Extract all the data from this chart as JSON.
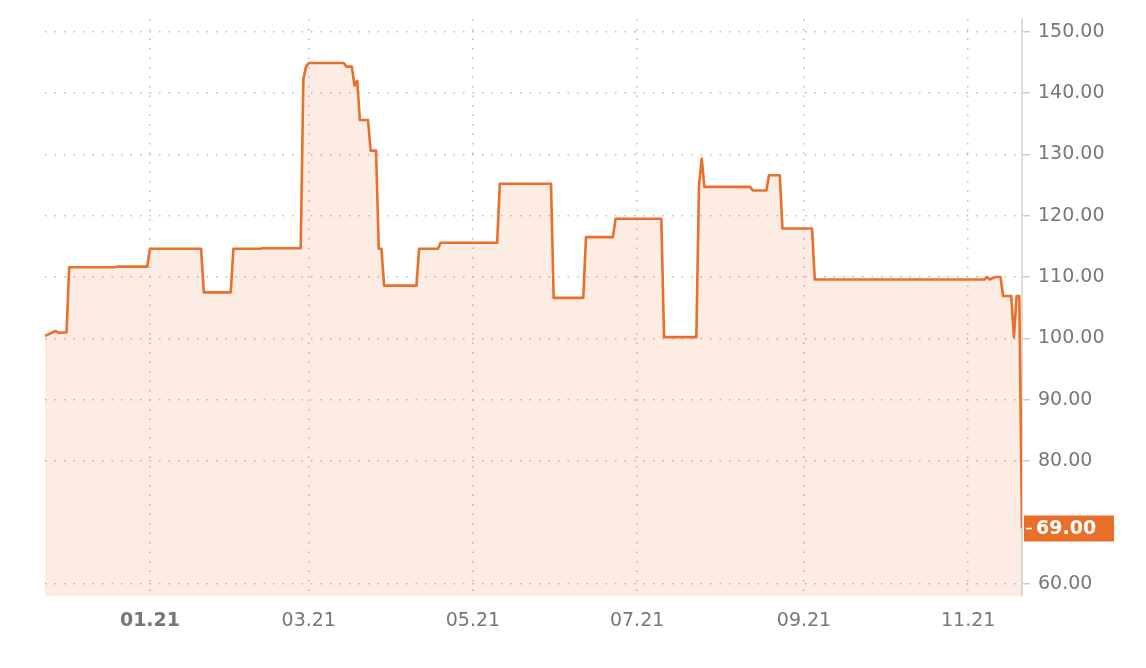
{
  "chart_data": {
    "type": "area",
    "x": [
      "2020-11-23",
      "2020-11-27",
      "2020-11-28",
      "2020-12-01",
      "2020-12-02",
      "2020-12-19",
      "2020-12-20",
      "2020-12-31",
      "2021-01-01",
      "2021-01-20",
      "2021-01-21",
      "2021-01-31",
      "2021-02-01",
      "2021-02-11",
      "2021-02-12",
      "2021-02-26",
      "2021-02-27",
      "2021-02-28",
      "2021-03-01",
      "2021-03-14",
      "2021-03-15",
      "2021-03-17",
      "2021-03-18",
      "2021-03-19",
      "2021-03-20",
      "2021-03-23",
      "2021-03-24",
      "2021-03-26",
      "2021-03-27",
      "2021-03-28",
      "2021-03-29",
      "2021-04-10",
      "2021-04-11",
      "2021-04-18",
      "2021-04-19",
      "2021-05-10",
      "2021-05-11",
      "2021-05-30",
      "2021-05-31",
      "2021-06-11",
      "2021-06-12",
      "2021-06-22",
      "2021-06-23",
      "2021-07-10",
      "2021-07-11",
      "2021-07-23",
      "2021-07-24",
      "2021-07-25",
      "2021-07-26",
      "2021-08-12",
      "2021-08-13",
      "2021-08-18",
      "2021-08-19",
      "2021-08-23",
      "2021-08-24",
      "2021-09-04",
      "2021-09-05",
      "2021-11-07",
      "2021-11-08",
      "2021-11-09",
      "2021-11-11",
      "2021-11-13",
      "2021-11-14",
      "2021-11-17",
      "2021-11-18",
      "2021-11-19",
      "2021-11-20",
      "2021-11-21"
    ],
    "series": [
      {
        "color": "#e8702a",
        "values": [
          100.4,
          101.2,
          100.9,
          101,
          111.6,
          111.6,
          111.7,
          111.7,
          114.6,
          114.6,
          107.5,
          107.5,
          114.6,
          114.6,
          114.7,
          114.7,
          142.3,
          144.3,
          144.9,
          144.9,
          144.3,
          144.3,
          141.2,
          142,
          135.6,
          135.6,
          130.6,
          130.6,
          114.6,
          114.6,
          108.6,
          108.6,
          114.6,
          114.6,
          115.6,
          115.6,
          125.2,
          125.2,
          106.6,
          106.6,
          116.5,
          116.5,
          119.5,
          119.5,
          100.2,
          100.2,
          125,
          129.3,
          124.7,
          124.7,
          124.1,
          124.1,
          126.6,
          126.6,
          117.9,
          117.9,
          109.6,
          109.6,
          110,
          109.6,
          110,
          110,
          106.9,
          106.9,
          100.2,
          106.9,
          106.9,
          69
        ],
        "value_labels": [
          null,
          null,
          null,
          null,
          null,
          null,
          null,
          null,
          null,
          null,
          null,
          null,
          null,
          null,
          null,
          null,
          null,
          null,
          null,
          null,
          null,
          null,
          null,
          null,
          null,
          null,
          null,
          null,
          null,
          null,
          null,
          null,
          null,
          null,
          null,
          null,
          null,
          null,
          null,
          null,
          null,
          null,
          null,
          null,
          null,
          null,
          null,
          null,
          null,
          null,
          null,
          null,
          null,
          null,
          null,
          null,
          null,
          null,
          null,
          null,
          null,
          null,
          null,
          null,
          null,
          null,
          null,
          "69.00"
        ]
      }
    ],
    "xlim": [
      "2020-11-23",
      "2021-11-21"
    ],
    "xticks": [
      {
        "value": "2021-01-01",
        "label": "01.21"
      },
      {
        "value": "2021-03-01",
        "label": "03.21"
      },
      {
        "value": "2021-05-01",
        "label": "05.21"
      },
      {
        "value": "2021-07-01",
        "label": "07.21"
      },
      {
        "value": "2021-09-01",
        "label": "09.21"
      },
      {
        "value": "2021-11-01",
        "label": "11.21"
      }
    ],
    "ylim": [
      58,
      152
    ],
    "yticks": [
      {
        "value": 60,
        "label": "60.00"
      },
      {
        "value": 80,
        "label": "80.00"
      },
      {
        "value": 90,
        "label": "90.00"
      },
      {
        "value": 100,
        "label": "100.00"
      },
      {
        "value": 110,
        "label": "110.00"
      },
      {
        "value": 120,
        "label": "120.00"
      },
      {
        "value": 130,
        "label": "130.00"
      },
      {
        "value": 140,
        "label": "140.00"
      },
      {
        "value": 150,
        "label": "150.00"
      }
    ],
    "grid": true,
    "legend": false,
    "marker": "none",
    "line_style": "solid"
  }
}
